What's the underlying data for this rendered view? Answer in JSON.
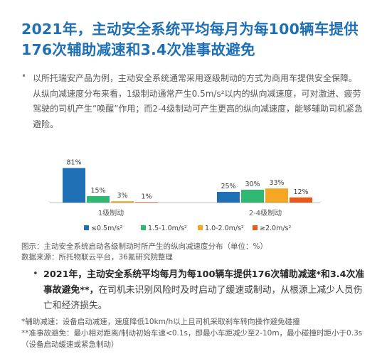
{
  "title": "2021年，主动安全系统平均每月为每100辆车提供176次辅助减速和3.4次准事故避免",
  "intro": "以所托瑞安产品为例，主动安全系统通常采用逐级制动的方式为商用车提供安全保障。从纵向减速度分布来看，1级制动通常产生0.5m/s²以内的纵向减速度，可对激进、疲劳驾驶的司机产生“唤醒”作用；而2-4级制动可产生更高的纵向减速度，能够辅助司机紧急避险。",
  "bullet_char": "•",
  "chart_data": {
    "type": "bar",
    "categories": [
      "1级制动",
      "2-4级制动"
    ],
    "series": [
      {
        "name": "≤0.5m/s²",
        "color": "#1f6fb5",
        "values": [
          81,
          25
        ]
      },
      {
        "name": "1.5-1.0m/s²",
        "color": "#2eb872",
        "values": [
          15,
          30
        ]
      },
      {
        "name": "1.0-2.0m/s²",
        "color": "#f5a623",
        "values": [
          3,
          33
        ]
      },
      {
        "name": "≥2.0m/s²",
        "color": "#e85a1c",
        "values": [
          1,
          12
        ]
      }
    ],
    "value_suffix": "%",
    "ylim": [
      0,
      100
    ],
    "grid": false,
    "legend_position": "bottom"
  },
  "caption": "图示：主动安全系统启动各级制动时所产生的纵向减速度分布（单位：%）",
  "source": "数据来源：所托物联云平台，36氪研究院整理",
  "summary": {
    "bold": "2021年，主动安全系统平均每月为每100辆车提供176次辅助减速*和3.4次准事故避免**，",
    "rest": "在司机未识别风险时及时启动了缓速或制动，从根源上减少人员伤亡和经济损失。"
  },
  "footnotes": [
    "*辅助减速：设备启动减速，速度降低10km/h以上且司机采取刹车转向操作避免碰撞",
    "**准事故避免：最小相对距离/制动初始车速<0.1s，即最小车距减少至2-10m，最小碰撞时距小于0.3s（设备启动缓速或紧急制动）"
  ]
}
